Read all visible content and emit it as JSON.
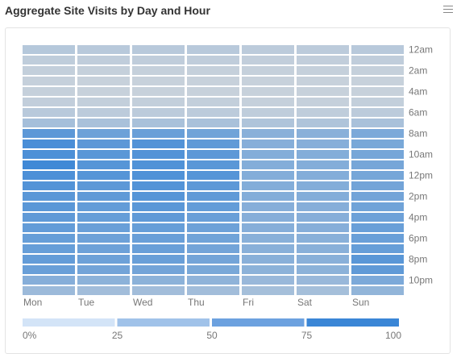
{
  "header": {
    "title": "Aggregate Site Visits by Day and Hour"
  },
  "menu_icon": "hamburger-menu-icon",
  "chart_data": {
    "type": "heatmap",
    "title": "Aggregate Site Visits by Day and Hour",
    "x_categories": [
      "Mon",
      "Tue",
      "Wed",
      "Thu",
      "Fri",
      "Sat",
      "Sun"
    ],
    "y_categories": [
      "12am",
      "1am",
      "2am",
      "3am",
      "4am",
      "5am",
      "6am",
      "7am",
      "8am",
      "9am",
      "10am",
      "11am",
      "12pm",
      "1pm",
      "2pm",
      "3pm",
      "4pm",
      "5pm",
      "6pm",
      "7pm",
      "8pm",
      "9pm",
      "10pm",
      "11pm"
    ],
    "y_tick_labels": [
      "12am",
      "2am",
      "4am",
      "6am",
      "8am",
      "10am",
      "12pm",
      "2pm",
      "4pm",
      "6pm",
      "8pm",
      "10pm"
    ],
    "values": [
      [
        22,
        20,
        20,
        20,
        18,
        18,
        20
      ],
      [
        16,
        15,
        15,
        15,
        14,
        14,
        15
      ],
      [
        13,
        12,
        12,
        12,
        12,
        12,
        12
      ],
      [
        12,
        11,
        11,
        11,
        11,
        11,
        11
      ],
      [
        12,
        11,
        11,
        11,
        11,
        11,
        11
      ],
      [
        14,
        13,
        13,
        13,
        12,
        12,
        13
      ],
      [
        20,
        18,
        18,
        18,
        16,
        16,
        18
      ],
      [
        32,
        30,
        30,
        30,
        26,
        26,
        30
      ],
      [
        78,
        68,
        70,
        66,
        50,
        50,
        58
      ],
      [
        90,
        78,
        84,
        76,
        52,
        52,
        60
      ],
      [
        88,
        80,
        84,
        78,
        54,
        54,
        62
      ],
      [
        96,
        82,
        86,
        80,
        54,
        54,
        62
      ],
      [
        88,
        82,
        86,
        82,
        54,
        54,
        62
      ],
      [
        84,
        78,
        84,
        78,
        54,
        54,
        64
      ],
      [
        80,
        76,
        82,
        76,
        54,
        54,
        64
      ],
      [
        80,
        74,
        80,
        74,
        52,
        52,
        66
      ],
      [
        76,
        72,
        76,
        70,
        52,
        52,
        68
      ],
      [
        74,
        70,
        72,
        68,
        52,
        52,
        70
      ],
      [
        72,
        68,
        70,
        66,
        50,
        50,
        70
      ],
      [
        72,
        68,
        70,
        64,
        50,
        50,
        72
      ],
      [
        74,
        68,
        70,
        64,
        50,
        50,
        80
      ],
      [
        70,
        64,
        64,
        60,
        48,
        48,
        76
      ],
      [
        52,
        48,
        48,
        46,
        40,
        40,
        58
      ],
      [
        38,
        34,
        34,
        34,
        32,
        32,
        44
      ]
    ],
    "value_range": [
      0,
      100
    ],
    "color_scale": {
      "stops": [
        {
          "from": 0,
          "to": 25,
          "color": "#d3e4f7"
        },
        {
          "from": 25,
          "to": 50,
          "color": "#a0c2e9"
        },
        {
          "from": 50,
          "to": 75,
          "color": "#6ca1df"
        },
        {
          "from": 75,
          "to": 100,
          "color": "#3a86d6"
        }
      ],
      "low_color": "#d8dadc",
      "high_color": "#3a86d6",
      "labels": [
        "0%",
        "25",
        "50",
        "75",
        "100"
      ]
    },
    "legend": "bottom",
    "grid": false
  }
}
